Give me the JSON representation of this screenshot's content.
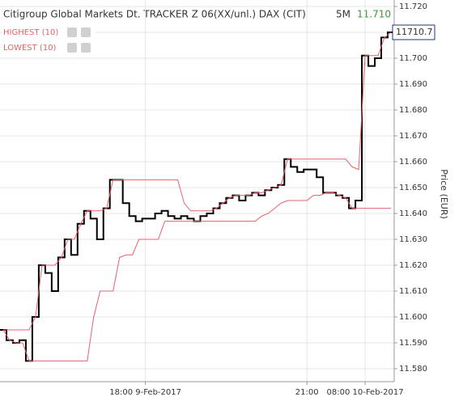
{
  "chart_data": {
    "type": "step",
    "title": "Citigroup Global Markets Dt. TRACKER Z 06(XX/unl.) DAX (CIT)",
    "interval": "5M",
    "last_value": "11.710",
    "last_price_label": "11710.7",
    "y_label": "Price (EUR)",
    "categories": [
      null,
      null,
      null,
      null,
      null,
      null,
      null,
      null,
      null,
      null,
      null,
      null,
      null,
      null,
      null,
      null,
      null,
      null,
      null,
      null,
      null,
      null,
      "18:00 9-Feb-2017",
      null,
      null,
      null,
      null,
      null,
      null,
      null,
      null,
      null,
      null,
      null,
      null,
      null,
      null,
      null,
      null,
      null,
      null,
      null,
      null,
      null,
      null,
      null,
      null,
      "21:00",
      null,
      null,
      null,
      null,
      null,
      null,
      null,
      null,
      "08:00 10-Feb-2017",
      null,
      null,
      null,
      null
    ],
    "series": [
      {
        "name": "Price",
        "color": "#000000",
        "values": [
          11.595,
          11.591,
          11.59,
          11.591,
          11.583,
          11.6,
          11.62,
          11.617,
          11.61,
          11.623,
          11.63,
          11.624,
          11.636,
          11.641,
          11.638,
          11.63,
          11.642,
          11.653,
          11.653,
          11.644,
          11.639,
          11.637,
          11.638,
          11.638,
          11.64,
          11.641,
          11.639,
          11.638,
          11.639,
          11.638,
          11.637,
          11.639,
          11.64,
          11.642,
          11.644,
          11.646,
          11.647,
          11.645,
          11.647,
          11.648,
          11.647,
          11.649,
          11.65,
          11.651,
          11.661,
          11.658,
          11.656,
          11.657,
          11.657,
          11.654,
          11.648,
          11.648,
          11.647,
          11.646,
          11.642,
          11.645,
          11.701,
          11.697,
          11.7,
          11.708,
          11.71
        ]
      },
      {
        "name": "HIGHEST (10)",
        "color": "#e8606b",
        "values": [
          11.595,
          11.595,
          11.595,
          11.595,
          11.595,
          11.6,
          11.62,
          11.62,
          11.62,
          11.623,
          11.63,
          11.63,
          11.636,
          11.641,
          11.641,
          11.641,
          11.642,
          11.653,
          11.653,
          11.653,
          11.653,
          11.653,
          11.653,
          11.653,
          11.653,
          11.653,
          11.653,
          11.653,
          11.644,
          11.641,
          11.641,
          11.641,
          11.641,
          11.642,
          11.644,
          11.646,
          11.647,
          11.647,
          11.647,
          11.648,
          11.648,
          11.649,
          11.65,
          11.651,
          11.661,
          11.661,
          11.661,
          11.661,
          11.661,
          11.661,
          11.661,
          11.661,
          11.661,
          11.661,
          11.658,
          11.657,
          11.701,
          11.701,
          11.701,
          11.708,
          11.71
        ]
      },
      {
        "name": "LOWEST (10)",
        "color": "#e8606b",
        "values": [
          11.595,
          11.591,
          11.59,
          11.59,
          11.583,
          11.583,
          11.583,
          11.583,
          11.583,
          11.583,
          11.583,
          11.583,
          11.583,
          11.583,
          11.6,
          11.61,
          11.61,
          11.61,
          11.623,
          11.624,
          11.624,
          11.63,
          11.63,
          11.63,
          11.63,
          11.637,
          11.637,
          11.637,
          11.637,
          11.637,
          11.637,
          11.637,
          11.637,
          11.637,
          11.637,
          11.637,
          11.637,
          11.637,
          11.637,
          11.637,
          11.639,
          11.64,
          11.642,
          11.644,
          11.645,
          11.645,
          11.645,
          11.645,
          11.647,
          11.647,
          11.648,
          11.648,
          11.647,
          11.646,
          11.642,
          11.642,
          11.642,
          11.642,
          11.642,
          11.642,
          11.642
        ]
      }
    ],
    "ylim": [
      11.575,
      11.7225
    ],
    "yticks": [
      {
        "value": 11.58,
        "label": "11.580"
      },
      {
        "value": 11.59,
        "label": "11.590"
      },
      {
        "value": 11.6,
        "label": "11.600"
      },
      {
        "value": 11.61,
        "label": "11.610"
      },
      {
        "value": 11.62,
        "label": "11.620"
      },
      {
        "value": 11.63,
        "label": "11.630"
      },
      {
        "value": 11.64,
        "label": "11.640"
      },
      {
        "value": 11.65,
        "label": "11.650"
      },
      {
        "value": 11.66,
        "label": "11.660"
      },
      {
        "value": 11.67,
        "label": "11.670"
      },
      {
        "value": 11.68,
        "label": "11.680"
      },
      {
        "value": 11.69,
        "label": "11.690"
      },
      {
        "value": 11.7,
        "label": "11.700"
      },
      {
        "value": 11.71,
        "label": "11.710"
      },
      {
        "value": 11.72,
        "label": "11.720"
      }
    ],
    "grid": true
  }
}
